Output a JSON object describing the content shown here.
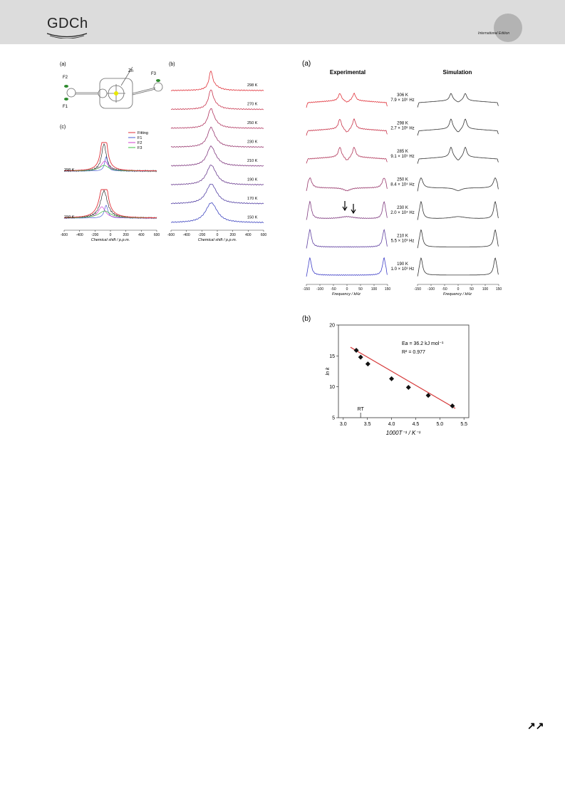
{
  "header": {
    "logo_text": "GDCh",
    "edition_label": "International Edition",
    "band_color": "#dcdcdc",
    "circle_color": "#b3b3b3"
  },
  "figure_left": {
    "panel_a": {
      "label": "(a)",
      "atom_labels": [
        "F2",
        "F1",
        "Zn",
        "F3"
      ]
    },
    "panel_b": {
      "label": "(b)",
      "temperatures": [
        "298 K",
        "270 K",
        "250 K",
        "230 K",
        "210 K",
        "190 K",
        "170 K",
        "150 K"
      ],
      "colors": [
        "#e0323a",
        "#c8354e",
        "#b0355f",
        "#98386f",
        "#80397f",
        "#6a3c8f",
        "#5340a4",
        "#3f46c0"
      ],
      "xaxis_ticks": [
        "-600",
        "-400",
        "-200",
        "0",
        "200",
        "400",
        "600"
      ],
      "xaxis_label": "Chemical shift / p.p.m."
    },
    "panel_c": {
      "label": "(c)",
      "legend": [
        {
          "name": "Fitting",
          "color": "#e0323a"
        },
        {
          "name": "F1",
          "color": "#4a5bd6"
        },
        {
          "name": "F2",
          "color": "#d040d0"
        },
        {
          "name": "F3",
          "color": "#3cc040"
        }
      ],
      "temperatures": [
        "298 K",
        "150 K"
      ],
      "xaxis_ticks": [
        "-600",
        "-400",
        "-200",
        "0",
        "200",
        "400",
        "600"
      ],
      "xaxis_label": "Chemical shift / p.p.m."
    }
  },
  "figure_right": {
    "panel_a": {
      "label": "(a)",
      "col_exp": "Experimental",
      "col_sim": "Simulation",
      "rows": [
        {
          "temp": "306 K",
          "rate": "7.9 × 10⁶ Hz",
          "color": "#e0323a"
        },
        {
          "temp": "298 K",
          "rate": "2.7 × 10⁶ Hz",
          "color": "#c83248"
        },
        {
          "temp": "285 K",
          "rate": "9.1 × 10⁵ Hz",
          "color": "#b03458"
        },
        {
          "temp": "250 K",
          "rate": "8.4 × 10⁴ Hz",
          "color": "#98386c"
        },
        {
          "temp": "230 K",
          "rate": "2.0 × 10⁴ Hz",
          "color": "#803c80"
        },
        {
          "temp": "210 K",
          "rate": "5.5 × 10³ Hz",
          "color": "#6040a0"
        },
        {
          "temp": "190 K",
          "rate": "1.0 × 10³ Hz",
          "color": "#4040c8"
        }
      ],
      "xaxis_ticks": [
        "-150",
        "-100",
        "-50",
        "0",
        "50",
        "100",
        "150"
      ],
      "xaxis_label": "Frequency / kHz"
    },
    "panel_b": {
      "label": "(b)",
      "annotation_ea": "Ea = 36.2 kJ mol⁻¹",
      "annotation_r2": "R² = 0.977",
      "rt_label": "RT"
    }
  },
  "chart_data": {
    "type": "scatter",
    "title": "",
    "xlabel": "1000T⁻¹ / K⁻¹",
    "ylabel": "ln k",
    "xlim": [
      2.9,
      5.6
    ],
    "ylim": [
      5,
      20
    ],
    "xticks": [
      3.0,
      3.5,
      4.0,
      4.5,
      5.0,
      5.5
    ],
    "yticks": [
      5,
      10,
      15,
      20
    ],
    "x": [
      3.27,
      3.36,
      3.51,
      4.0,
      4.35,
      4.76,
      5.26
    ],
    "y": [
      15.9,
      14.8,
      13.7,
      11.3,
      9.9,
      8.6,
      6.9
    ],
    "fit_line": {
      "x": [
        3.15,
        5.32
      ],
      "y": [
        16.4,
        6.5
      ],
      "color": "#d63a3a"
    },
    "rt_x": 3.36,
    "grid": false
  }
}
